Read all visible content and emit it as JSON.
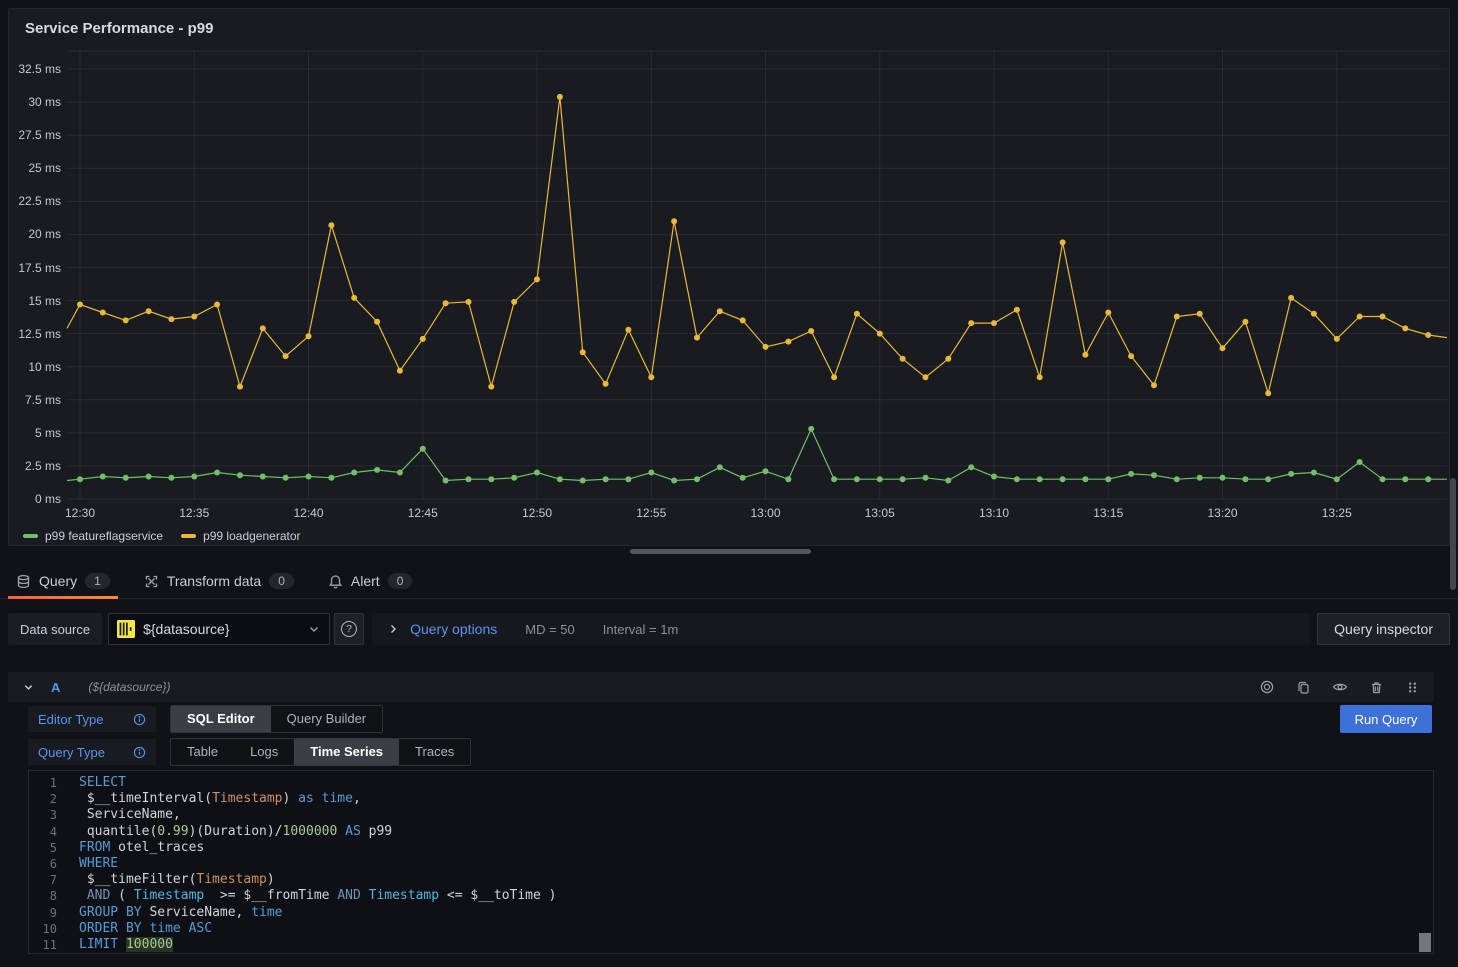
{
  "panel": {
    "title": "Service Performance - p99"
  },
  "chart_data": {
    "type": "line",
    "title": "Service Performance - p99",
    "unit": "ms",
    "grid": true,
    "legend_position": "bottom",
    "x_start": "12:30",
    "x_step_minutes": 1,
    "x_tick_labels": [
      "12:30",
      "12:35",
      "12:40",
      "12:45",
      "12:50",
      "12:55",
      "13:00",
      "13:05",
      "13:10",
      "13:15",
      "13:20",
      "13:25"
    ],
    "y_tick_labels": [
      "0 ms",
      "2.5 ms",
      "5 ms",
      "7.5 ms",
      "10 ms",
      "12.5 ms",
      "15 ms",
      "17.5 ms",
      "20 ms",
      "22.5 ms",
      "25 ms",
      "27.5 ms",
      "30 ms",
      "32.5 ms"
    ],
    "ylim": [
      0,
      34
    ],
    "y_tick_step": 2.5,
    "series": [
      {
        "name": "p99 featureflagservice",
        "color": "#73BF69",
        "lead_in": 1.4,
        "lead_out": 1.5,
        "values": [
          1.5,
          1.7,
          1.6,
          1.7,
          1.6,
          1.7,
          2.0,
          1.8,
          1.7,
          1.6,
          1.7,
          1.6,
          2.0,
          2.2,
          2.0,
          3.8,
          1.4,
          1.5,
          1.5,
          1.6,
          2.0,
          1.5,
          1.4,
          1.5,
          1.5,
          2.0,
          1.4,
          1.5,
          2.4,
          1.6,
          2.1,
          1.5,
          5.3,
          1.5,
          1.5,
          1.5,
          1.5,
          1.6,
          1.4,
          2.4,
          1.7,
          1.5,
          1.5,
          1.5,
          1.5,
          1.5,
          1.9,
          1.8,
          1.5,
          1.6,
          1.6,
          1.5,
          1.5,
          1.9,
          2.0,
          1.5,
          2.8,
          1.5,
          1.5,
          1.5
        ]
      },
      {
        "name": "p99 loadgenerator",
        "color": "#EAB839",
        "lead_in": 12.9,
        "lead_out": 12.2,
        "values": [
          14.7,
          14.1,
          13.5,
          14.2,
          13.6,
          13.8,
          14.7,
          8.5,
          12.9,
          10.8,
          12.3,
          20.7,
          15.2,
          13.4,
          9.7,
          12.1,
          14.8,
          14.9,
          8.5,
          14.9,
          16.6,
          30.4,
          11.1,
          8.7,
          12.8,
          9.2,
          21.0,
          12.2,
          14.2,
          13.5,
          11.5,
          11.9,
          12.7,
          9.2,
          14.0,
          12.5,
          10.6,
          9.2,
          10.6,
          13.3,
          13.3,
          14.3,
          9.2,
          19.4,
          10.9,
          14.1,
          10.8,
          8.6,
          13.8,
          14.0,
          11.4,
          13.4,
          8.0,
          15.2,
          14.0,
          12.1,
          13.8,
          13.8,
          12.9,
          12.4
        ]
      }
    ]
  },
  "tabs": [
    {
      "label": "Query",
      "badge": "1"
    },
    {
      "label": "Transform data",
      "badge": "0"
    },
    {
      "label": "Alert",
      "badge": "0"
    }
  ],
  "toolbar": {
    "datasource_label": "Data source",
    "datasource_value": "${datasource}",
    "query_options_label": "Query options",
    "md": "MD = 50",
    "interval": "Interval = 1m",
    "query_inspector_label": "Query inspector"
  },
  "query_row": {
    "ref_id": "A",
    "datasource_hint": "(${datasource})"
  },
  "editor": {
    "editor_type_label": "Editor Type",
    "editor_type_options": [
      "SQL Editor",
      "Query Builder"
    ],
    "editor_type_active": "SQL Editor",
    "query_type_label": "Query Type",
    "query_type_options": [
      "Table",
      "Logs",
      "Time Series",
      "Traces"
    ],
    "query_type_active": "Time Series",
    "run_query_label": "Run Query"
  },
  "sql": {
    "lines": [
      [
        [
          "kw",
          "SELECT"
        ]
      ],
      [
        [
          "pl",
          " $__timeInterval("
        ],
        [
          "col",
          "Timestamp"
        ],
        [
          "pl",
          ") "
        ],
        [
          "kw",
          "as"
        ],
        [
          "pl",
          " "
        ],
        [
          "kw",
          "time"
        ],
        [
          "pl",
          ","
        ]
      ],
      [
        [
          "pl",
          " ServiceName,"
        ]
      ],
      [
        [
          "pl",
          " quantile("
        ],
        [
          "num",
          "0.99"
        ],
        [
          "pl",
          ")(Duration)/"
        ],
        [
          "num",
          "1000000"
        ],
        [
          "pl",
          " "
        ],
        [
          "kw",
          "AS"
        ],
        [
          "pl",
          " p99"
        ]
      ],
      [
        [
          "kw",
          "FROM"
        ],
        [
          "pl",
          " otel_traces"
        ]
      ],
      [
        [
          "kw",
          "WHERE"
        ]
      ],
      [
        [
          "pl",
          " $__timeFilter("
        ],
        [
          "col",
          "Timestamp"
        ],
        [
          "pl",
          ")"
        ]
      ],
      [
        [
          "pl",
          " "
        ],
        [
          "kw2",
          "AND"
        ],
        [
          "pl",
          " ( "
        ],
        [
          "type",
          "Timestamp"
        ],
        [
          "pl",
          "  >= $__fromTime "
        ],
        [
          "kw2",
          "AND"
        ],
        [
          "pl",
          " "
        ],
        [
          "type",
          "Timestamp"
        ],
        [
          "pl",
          " <= $__toTime )"
        ]
      ],
      [
        [
          "kw",
          "GROUP BY"
        ],
        [
          "pl",
          " ServiceName, "
        ],
        [
          "kw",
          "time"
        ]
      ],
      [
        [
          "kw",
          "ORDER BY"
        ],
        [
          "pl",
          " "
        ],
        [
          "kw",
          "time"
        ],
        [
          "pl",
          " "
        ],
        [
          "kw",
          "ASC"
        ]
      ],
      [
        [
          "kw",
          "LIMIT"
        ],
        [
          "pl",
          " "
        ],
        [
          "numhl",
          "100000"
        ]
      ]
    ]
  },
  "colors": {
    "accent_tab_orange": "#FF780A",
    "link_blue": "#5794F2",
    "series_green": "#73BF69",
    "series_yellow": "#EAB839",
    "run_button_blue": "#3D71D9",
    "panel_background": "#181B1F",
    "page_background": "#111217"
  }
}
